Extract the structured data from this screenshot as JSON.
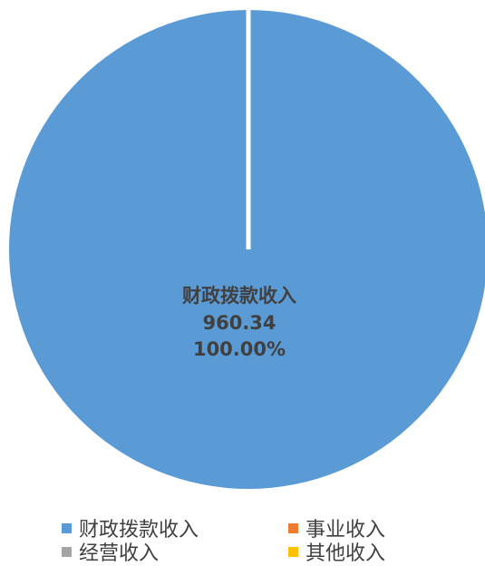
{
  "chart_data": {
    "type": "pie",
    "categories": [
      "财政拨款收入",
      "事业收入",
      "经营收入",
      "其他收入"
    ],
    "values": [
      960.34,
      0,
      0,
      0
    ],
    "percentages": [
      "100.00%",
      "0.00%",
      "0.00%",
      "0.00%"
    ],
    "colors": [
      "#5B9BD5",
      "#ED7D31",
      "#A5A5A5",
      "#FFC000"
    ],
    "data_labels": [
      {
        "category": "财政拨款收入",
        "value": "960.34",
        "percent": "100.00%"
      }
    ],
    "legend_position": "bottom"
  }
}
